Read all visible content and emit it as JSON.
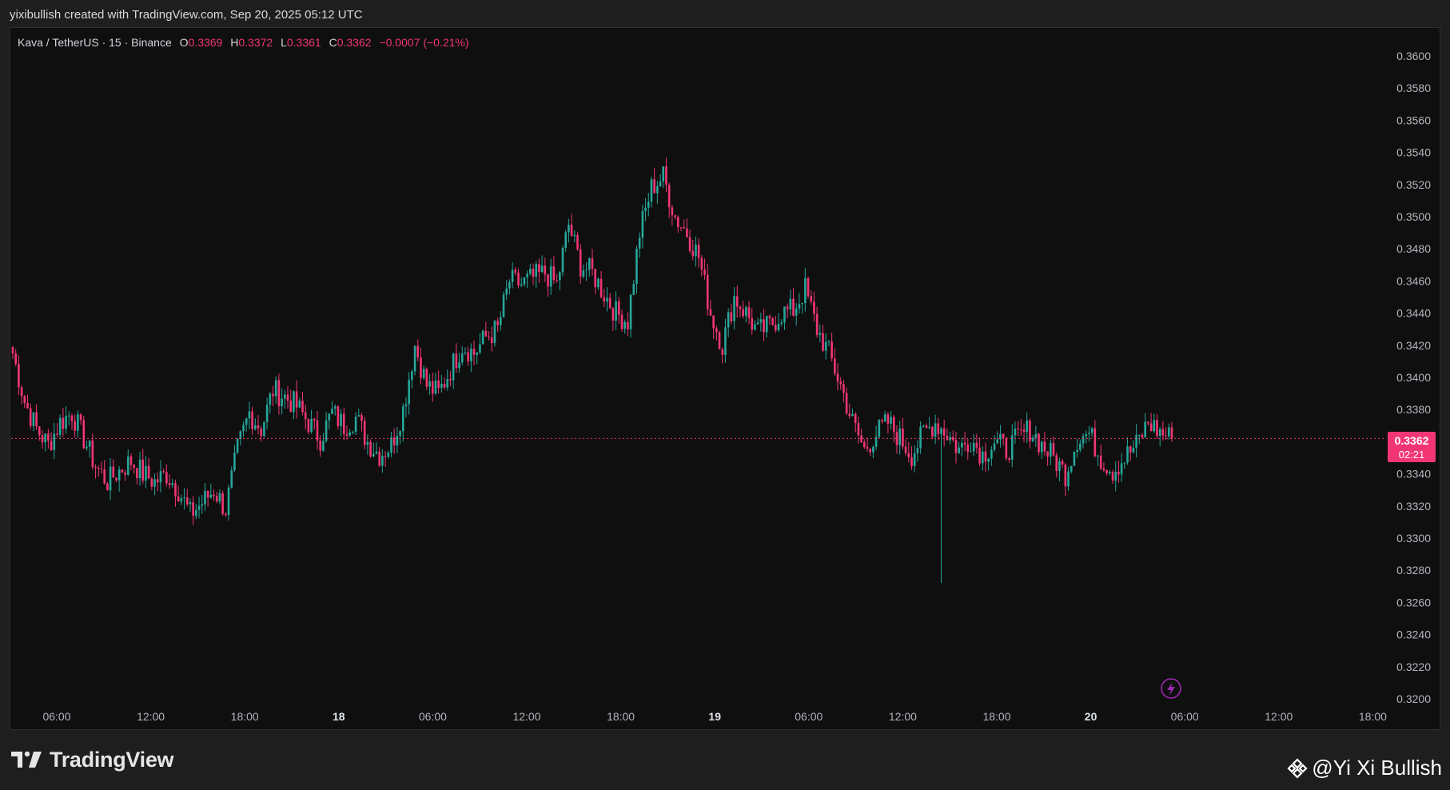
{
  "header": {
    "attribution": "yixibullish created with TradingView.com, Sep 20, 2025 05:12 UTC"
  },
  "legend": {
    "symbol": "Kava / TetherUS · 15 · Binance",
    "open_label": "O",
    "open": "0.3369",
    "high_label": "H",
    "high": "0.3372",
    "low_label": "L",
    "low": "0.3361",
    "close_label": "C",
    "close": "0.3362",
    "change": "−0.0007 (−0.21%)"
  },
  "price_tag": {
    "price": "0.3362",
    "countdown": "02:21"
  },
  "footer": {
    "brand": "TradingView",
    "author": "@Yi Xi Bullish"
  },
  "colors": {
    "up": "#26a69a",
    "down": "#f23674",
    "background": "#0f0f0f",
    "axis_text": "#b2b5be"
  },
  "chart_data": {
    "type": "candlestick",
    "interval": "15",
    "ylim": [
      0.32,
      0.3612
    ],
    "y_ticks": [
      "0.3600",
      "0.3580",
      "0.3560",
      "0.3540",
      "0.3520",
      "0.3500",
      "0.3480",
      "0.3460",
      "0.3440",
      "0.3420",
      "0.3400",
      "0.3380",
      "0.3360",
      "0.3340",
      "0.3320",
      "0.3300",
      "0.3280",
      "0.3260",
      "0.3240",
      "0.3220",
      "0.3200"
    ],
    "x_ticks": [
      {
        "label": "06:00",
        "bold": false
      },
      {
        "label": "12:00",
        "bold": false
      },
      {
        "label": "18:00",
        "bold": false
      },
      {
        "label": "18",
        "bold": true
      },
      {
        "label": "06:00",
        "bold": false
      },
      {
        "label": "12:00",
        "bold": false
      },
      {
        "label": "18:00",
        "bold": false
      },
      {
        "label": "19",
        "bold": true
      },
      {
        "label": "06:00",
        "bold": false
      },
      {
        "label": "12:00",
        "bold": false
      },
      {
        "label": "18:00",
        "bold": false
      },
      {
        "label": "20",
        "bold": true
      },
      {
        "label": "06:00",
        "bold": false
      },
      {
        "label": "12:00",
        "bold": false
      },
      {
        "label": "18:00",
        "bold": false
      }
    ],
    "current_price": 0.3362,
    "close_path": [
      0.3415,
      0.3385,
      0.3368,
      0.3358,
      0.3372,
      0.3378,
      0.3362,
      0.3345,
      0.3335,
      0.3342,
      0.3348,
      0.334,
      0.3335,
      0.334,
      0.333,
      0.3315,
      0.3322,
      0.333,
      0.3318,
      0.3355,
      0.3378,
      0.3368,
      0.3392,
      0.3388,
      0.3382,
      0.3372,
      0.3362,
      0.3378,
      0.337,
      0.3375,
      0.336,
      0.3352,
      0.3358,
      0.338,
      0.342,
      0.3395,
      0.339,
      0.3405,
      0.342,
      0.3415,
      0.3425,
      0.343,
      0.346,
      0.3458,
      0.3462,
      0.3465,
      0.3458,
      0.3495,
      0.347,
      0.3465,
      0.3452,
      0.344,
      0.3435,
      0.349,
      0.3518,
      0.3525,
      0.35,
      0.349,
      0.3475,
      0.344,
      0.342,
      0.345,
      0.344,
      0.3428,
      0.3432,
      0.344,
      0.3442,
      0.3455,
      0.343,
      0.3415,
      0.3395,
      0.3372,
      0.3355,
      0.3365,
      0.3372,
      0.3362,
      0.3352,
      0.3365,
      0.3372,
      0.3365,
      0.3355,
      0.3362,
      0.3352,
      0.336,
      0.3355,
      0.3362,
      0.3368,
      0.3358,
      0.335,
      0.334,
      0.3362,
      0.3365,
      0.335,
      0.3342,
      0.335,
      0.3358,
      0.3372,
      0.3366,
      0.3362
    ]
  }
}
